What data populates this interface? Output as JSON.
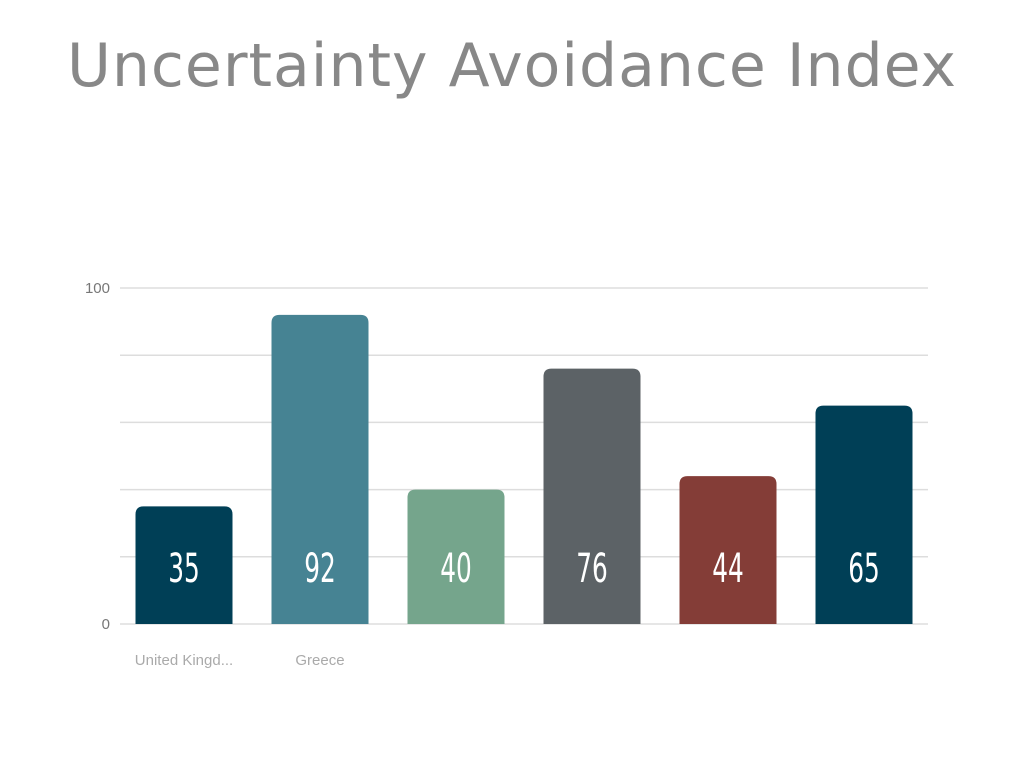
{
  "chart_data": {
    "type": "bar",
    "title": "Uncertainty Avoidance Index",
    "categories": [
      "United Kingd...",
      "Greece",
      "",
      "",
      "",
      ""
    ],
    "values": [
      35,
      92,
      40,
      76,
      44,
      65
    ],
    "ylim": [
      0,
      100
    ],
    "y_tick_labels": [
      "0",
      "100"
    ],
    "grid": true,
    "colors": [
      "#003f56",
      "#468393",
      "#75a58c",
      "#5c6266",
      "#843d37",
      "#003f56"
    ]
  }
}
